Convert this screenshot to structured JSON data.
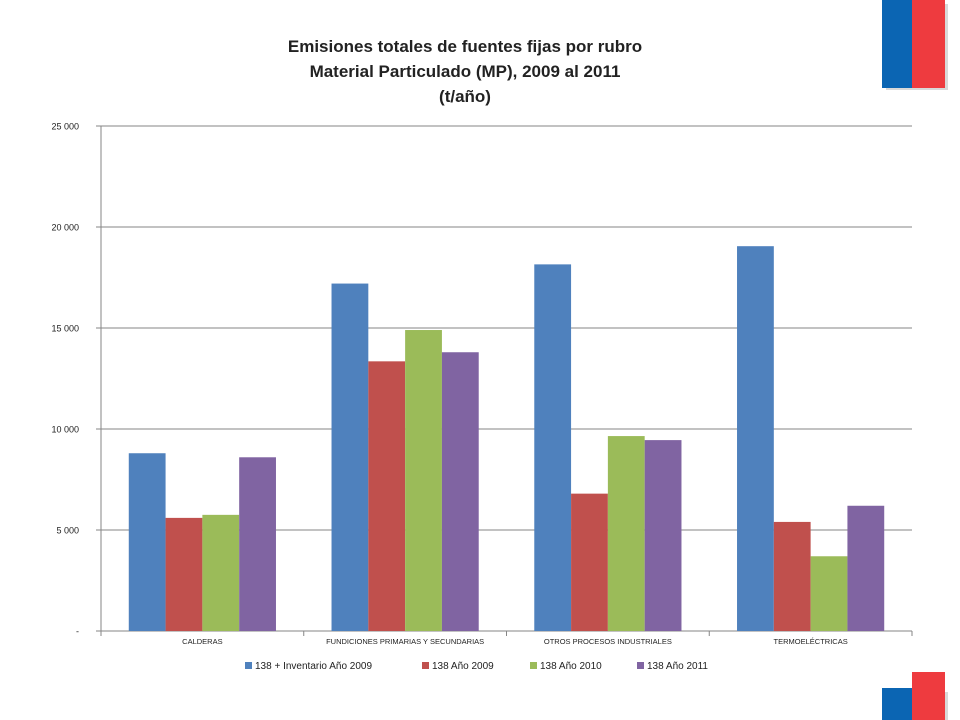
{
  "chart_data": {
    "type": "bar",
    "title": [
      "Emisiones totales de fuentes fijas por rubro",
      "Material Particulado (MP), 2009 al 2011",
      "(t/año)"
    ],
    "categories": [
      "CALDERAS",
      "FUNDICIONES PRIMARIAS Y SECUNDARIAS",
      "OTROS PROCESOS INDUSTRIALES",
      "TERMOELÉCTRICAS"
    ],
    "series": [
      {
        "name": "138 + Inventario Año 2009",
        "color": "#4F81BD",
        "values": [
          8800,
          17200,
          18150,
          19050
        ]
      },
      {
        "name": "138  Año 2009",
        "color": "#C0504D",
        "values": [
          5600,
          13350,
          6800,
          5400
        ]
      },
      {
        "name": "138 Año 2010",
        "color": "#9BBB59",
        "values": [
          5750,
          14900,
          9650,
          3700
        ]
      },
      {
        "name": "138 Año 2011",
        "color": "#8064A2",
        "values": [
          8600,
          13800,
          9450,
          6200
        ]
      }
    ],
    "ylim": [
      0,
      25000
    ],
    "yticks": [
      0,
      5000,
      10000,
      15000,
      20000,
      25000
    ],
    "ytick_labels": [
      "-",
      "5 000",
      "10 000",
      "15 000",
      "20 000",
      "25 000"
    ],
    "grid": true,
    "legend_position": "bottom"
  },
  "branding": {
    "flag_colors": {
      "blue": "#0B65B3",
      "red": "#EE3B3F"
    }
  }
}
